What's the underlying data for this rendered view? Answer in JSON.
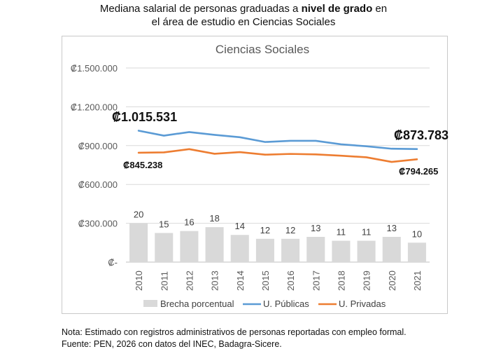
{
  "page_title": {
    "line1_prefix": "Mediana salarial de personas graduadas a ",
    "line1_bold": "nivel de grado",
    "line1_suffix": " en",
    "line2": "el área de estudio en  Ciencias Sociales"
  },
  "notes": {
    "line1": "Nota: Estimado con registros administrativos de personas reportadas con empleo formal.",
    "line2": "Fuente: PEN, 2026 con datos del INEC, Badagra-Sicere."
  },
  "colors": {
    "publicas": "#5b9bd5",
    "privadas": "#ed7d31",
    "brecha": "#d9d9d9",
    "grid": "#d9d9d9"
  },
  "chart_data": {
    "type": "line",
    "title": "Ciencias Sociales",
    "categories": [
      "2010",
      "2011",
      "2012",
      "2013",
      "2014",
      "2015",
      "2016",
      "2017",
      "2018",
      "2019",
      "2020",
      "2021"
    ],
    "y_ticks": [
      0,
      300000,
      600000,
      900000,
      1200000,
      1500000
    ],
    "y_tick_labels": [
      "₡-",
      "₡300.000",
      "₡600.000",
      "₡900.000",
      "₡1.200.000",
      "₡1.500.000"
    ],
    "ylim": [
      0,
      1500000
    ],
    "grid": true,
    "legend_position": "bottom",
    "series": [
      {
        "name": "Brecha porcentual",
        "kind": "bar",
        "scale_max": 100,
        "values": [
          20,
          15,
          16,
          18,
          14,
          12,
          12,
          13,
          11,
          11,
          13,
          10
        ]
      },
      {
        "name": "U. Públicas",
        "kind": "line",
        "values": [
          1015531,
          977000,
          1005000,
          983000,
          965000,
          928000,
          937000,
          937000,
          910000,
          895000,
          876000,
          873783
        ]
      },
      {
        "name": "U. Privadas",
        "kind": "line",
        "values": [
          845238,
          848000,
          873000,
          837000,
          850000,
          830000,
          836000,
          832000,
          822000,
          810000,
          774000,
          794265
        ]
      }
    ],
    "annotations": [
      {
        "text": "₡1.015.531",
        "series": "U. Públicas",
        "point": "2010"
      },
      {
        "text": "₡873.783",
        "series": "U. Públicas",
        "point": "2021"
      },
      {
        "text": "₡845.238",
        "series": "U. Privadas",
        "point": "2010"
      },
      {
        "text": "₡794.265",
        "series": "U. Privadas",
        "point": "2021"
      }
    ]
  }
}
